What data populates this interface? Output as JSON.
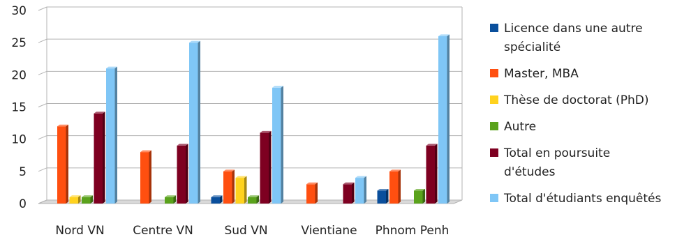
{
  "chart_data": {
    "type": "bar",
    "title": "",
    "xlabel": "",
    "ylabel": "",
    "ylim": [
      0,
      30
    ],
    "yticks": [
      0,
      5,
      10,
      15,
      20,
      25,
      30
    ],
    "grid": true,
    "legend_position": "right",
    "categories": [
      "Nord VN",
      "Centre VN",
      "Sud VN",
      "Vientiane",
      "Phnom Penh"
    ],
    "series": [
      {
        "name": "Licence dans une autre spécialité",
        "legend_lines": [
          "Licence dans une autre",
          "spécialité"
        ],
        "color": "#0a4f9c",
        "values": [
          0,
          0,
          1,
          0,
          2
        ]
      },
      {
        "name": "Master, MBA",
        "legend_lines": [
          "Master, MBA"
        ],
        "color": "#ff4f10",
        "values": [
          12,
          8,
          5,
          3,
          5
        ]
      },
      {
        "name": "Thèse de doctorat (PhD)",
        "legend_lines": [
          "Thèse de doctorat (PhD)"
        ],
        "color": "#ffd21e",
        "values": [
          1,
          0,
          4,
          0,
          0
        ]
      },
      {
        "name": "Autre",
        "legend_lines": [
          "Autre"
        ],
        "color": "#5aa21c",
        "values": [
          1,
          1,
          1,
          0,
          2
        ]
      },
      {
        "name": "Total en poursuite d'études",
        "legend_lines": [
          "Total en poursuite",
          "d'études"
        ],
        "color": "#7e0021",
        "values": [
          14,
          9,
          11,
          3,
          9
        ]
      },
      {
        "name": "Total d'étudiants enquêtés",
        "legend_lines": [
          "Total d'étudiants enquêtés"
        ],
        "color": "#7fc6f6",
        "values": [
          21,
          25,
          18,
          4,
          26
        ]
      }
    ]
  }
}
